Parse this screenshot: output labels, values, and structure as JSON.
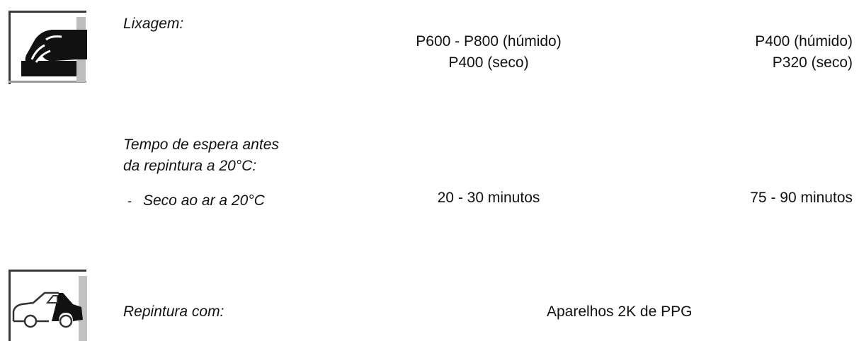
{
  "sanding": {
    "icon": "hand-sanding-icon",
    "label": "Lixagem:",
    "col1": [
      "P600 - P800 (húmido)",
      "P400 (seco)"
    ],
    "col2": [
      "P400 (húmido)",
      "P320 (seco)"
    ]
  },
  "waiting": {
    "label_lines": [
      "Tempo de espera antes",
      "da repintura a 20°C:"
    ],
    "sub_bullet": "-",
    "sub_label": "Seco ao ar a 20°C",
    "col1": "20 - 30 minutos",
    "col2": "75 - 90 minutos"
  },
  "recoat": {
    "icon": "car-repaint-icon",
    "label": "Repintura com:",
    "value": "Aparelhos 2K de PPG"
  }
}
